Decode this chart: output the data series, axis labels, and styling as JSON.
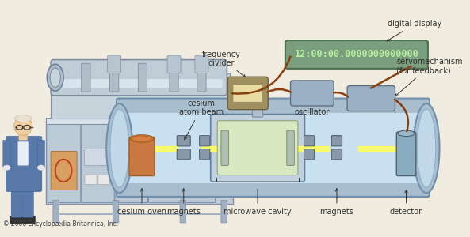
{
  "bg_color": "#f0ece0",
  "labels": {
    "digital_display": "digital display",
    "frequency_divider": "frequency\ndivider",
    "cesium_atom_beam": "cesium\natom beam",
    "oscillator": "oscillator",
    "servomechanism": "servomechanism\n(for feedback)",
    "cesium_oven": "cesium oven",
    "magnets1": "magnets",
    "microwave_cavity": "microwave cavity",
    "magnets2": "magnets",
    "detector": "detector",
    "copyright": "© 2008 Encyclopædia Britannica, Inc."
  },
  "display_text": "12:00:00.0000000000000",
  "display_bg": "#7a9e7e",
  "display_text_color": "#b8f0a0",
  "tube_outer_color": "#9ab8cc",
  "tube_inner_color": "#c8e4f0",
  "beam_color": "#ffff60",
  "cesium_oven_color": "#c87840",
  "magnet_color": "#8898a8",
  "detector_color": "#8aacc0",
  "cavity_outer_color": "#c0d0dc",
  "cavity_inner_color": "#d8e8c0",
  "freq_div_color": "#b0a870",
  "freq_div_screen": "#e8dca0",
  "oscillator_color": "#9ab0c4",
  "servo_color": "#9ab0c4",
  "wire_color": "#8b4010",
  "machine_color": "#b8ccd8",
  "person_blue": "#5878a8",
  "connector_color": "#b0bcca",
  "font_size_label": 7,
  "font_size_display": 8.5,
  "arrow_color": "#303030"
}
